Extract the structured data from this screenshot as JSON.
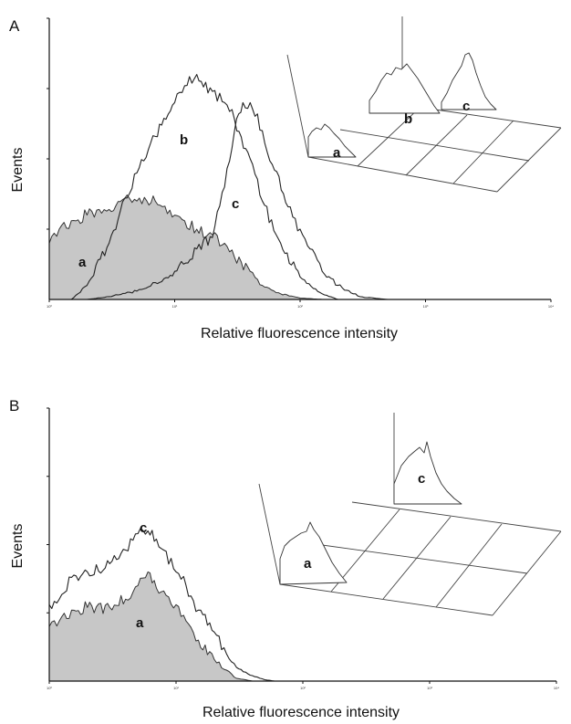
{
  "chart_data": [
    {
      "panel": "A",
      "type": "area",
      "xlabel": "Relative fluorescence intensity",
      "ylabel": "Events",
      "x_scale": "log",
      "xlim": [
        1,
        10000
      ],
      "ylim": [
        0,
        100
      ],
      "grid": false,
      "x_ticks": [
        1,
        10,
        100,
        1000,
        10000
      ],
      "x_tick_labels": [
        "10⁰",
        "10¹",
        "10²",
        "10³",
        "10⁴"
      ],
      "series": [
        {
          "label": "a",
          "filled": true,
          "x": [
            1,
            1.2,
            1.5,
            2,
            2.5,
            3,
            4,
            5,
            6,
            7,
            8,
            10,
            12,
            15,
            20,
            25,
            30,
            40,
            50,
            70,
            100,
            150
          ],
          "y": [
            20,
            25,
            28,
            30,
            32,
            32,
            36,
            35,
            35,
            35,
            33,
            30,
            28,
            25,
            23,
            20,
            15,
            10,
            5,
            2,
            0.5,
            0
          ]
        },
        {
          "label": "b",
          "filled": false,
          "x": [
            1.5,
            2,
            3,
            4,
            5,
            7,
            10,
            12,
            15,
            20,
            25,
            30,
            40,
            50,
            70,
            100,
            150,
            200
          ],
          "y": [
            0,
            5,
            20,
            36,
            45,
            58,
            70,
            76,
            80,
            74,
            70,
            64,
            50,
            35,
            20,
            8,
            2,
            0
          ]
        },
        {
          "label": "c",
          "filled": false,
          "x": [
            2,
            3,
            5,
            7,
            10,
            15,
            20,
            25,
            30,
            35,
            40,
            50,
            60,
            80,
            100,
            120,
            150,
            200,
            300,
            500
          ],
          "y": [
            0,
            1,
            3,
            6,
            10,
            18,
            22,
            40,
            60,
            70,
            70,
            60,
            48,
            33,
            25,
            18,
            10,
            5,
            1,
            0
          ]
        }
      ],
      "annotations": [
        "a",
        "b",
        "c"
      ]
    },
    {
      "panel": "B",
      "type": "area",
      "xlabel": "Relative fluorescence intensity",
      "ylabel": "Events",
      "x_scale": "log",
      "xlim": [
        1,
        10000
      ],
      "ylim": [
        0,
        100
      ],
      "grid": false,
      "x_ticks": [
        1,
        10,
        100,
        1000,
        10000
      ],
      "x_tick_labels": [
        "10⁰",
        "10¹",
        "10²",
        "10³",
        "10⁴"
      ],
      "series": [
        {
          "label": "a",
          "filled": true,
          "x": [
            1,
            1.2,
            1.5,
            2,
            3,
            4,
            5,
            6,
            7,
            8,
            10,
            12,
            15,
            20,
            25,
            30,
            40
          ],
          "y": [
            20,
            22,
            26,
            27,
            27,
            30,
            35,
            40,
            34,
            33,
            28,
            22,
            15,
            8,
            4,
            1,
            0
          ]
        },
        {
          "label": "c",
          "filled": false,
          "x": [
            1,
            1.2,
            1.5,
            2,
            3,
            4,
            5,
            6,
            7,
            8,
            10,
            12,
            15,
            20,
            25,
            30,
            40,
            50,
            60
          ],
          "y": [
            28,
            30,
            38,
            40,
            43,
            48,
            54,
            55,
            52,
            48,
            40,
            35,
            26,
            18,
            10,
            5,
            2,
            0.5,
            0
          ]
        }
      ],
      "annotations": [
        "a",
        "c"
      ]
    }
  ]
}
